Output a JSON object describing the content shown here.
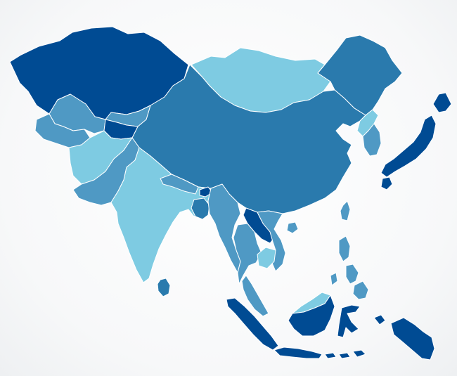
{
  "palette": {
    "dark": "#004b93",
    "mid": "#2a7aad",
    "soft": "#4f99c4",
    "light": "#7ecbe2",
    "background": "#ffffff",
    "border": "#ffffff"
  },
  "regions": [
    {
      "id": "kazakhstan",
      "tone": "dark"
    },
    {
      "id": "mongolia",
      "tone": "light"
    },
    {
      "id": "russia-far-east",
      "tone": "mid"
    },
    {
      "id": "china",
      "tone": "mid"
    },
    {
      "id": "uzbekistan",
      "tone": "soft"
    },
    {
      "id": "turkmenistan",
      "tone": "soft"
    },
    {
      "id": "kyrgyzstan",
      "tone": "soft"
    },
    {
      "id": "tajikistan",
      "tone": "dark"
    },
    {
      "id": "afghanistan",
      "tone": "light"
    },
    {
      "id": "pakistan",
      "tone": "soft"
    },
    {
      "id": "india",
      "tone": "light"
    },
    {
      "id": "nepal",
      "tone": "soft"
    },
    {
      "id": "bhutan",
      "tone": "dark"
    },
    {
      "id": "bangladesh",
      "tone": "mid"
    },
    {
      "id": "sri-lanka",
      "tone": "mid"
    },
    {
      "id": "myanmar",
      "tone": "soft"
    },
    {
      "id": "thailand",
      "tone": "soft"
    },
    {
      "id": "laos",
      "tone": "dark"
    },
    {
      "id": "vietnam",
      "tone": "soft"
    },
    {
      "id": "cambodia",
      "tone": "light"
    },
    {
      "id": "malay-peninsula",
      "tone": "soft"
    },
    {
      "id": "north-korea",
      "tone": "light"
    },
    {
      "id": "south-korea",
      "tone": "soft"
    },
    {
      "id": "japan",
      "tone": "dark"
    },
    {
      "id": "taiwan",
      "tone": "soft"
    },
    {
      "id": "hainan",
      "tone": "soft"
    },
    {
      "id": "philippines",
      "tone": "soft"
    },
    {
      "id": "sumatra",
      "tone": "dark"
    },
    {
      "id": "borneo-north",
      "tone": "light"
    },
    {
      "id": "borneo-south",
      "tone": "dark"
    },
    {
      "id": "sulawesi",
      "tone": "dark"
    },
    {
      "id": "java",
      "tone": "dark"
    },
    {
      "id": "lesser-sunda",
      "tone": "dark"
    },
    {
      "id": "new-guinea",
      "tone": "dark"
    }
  ]
}
